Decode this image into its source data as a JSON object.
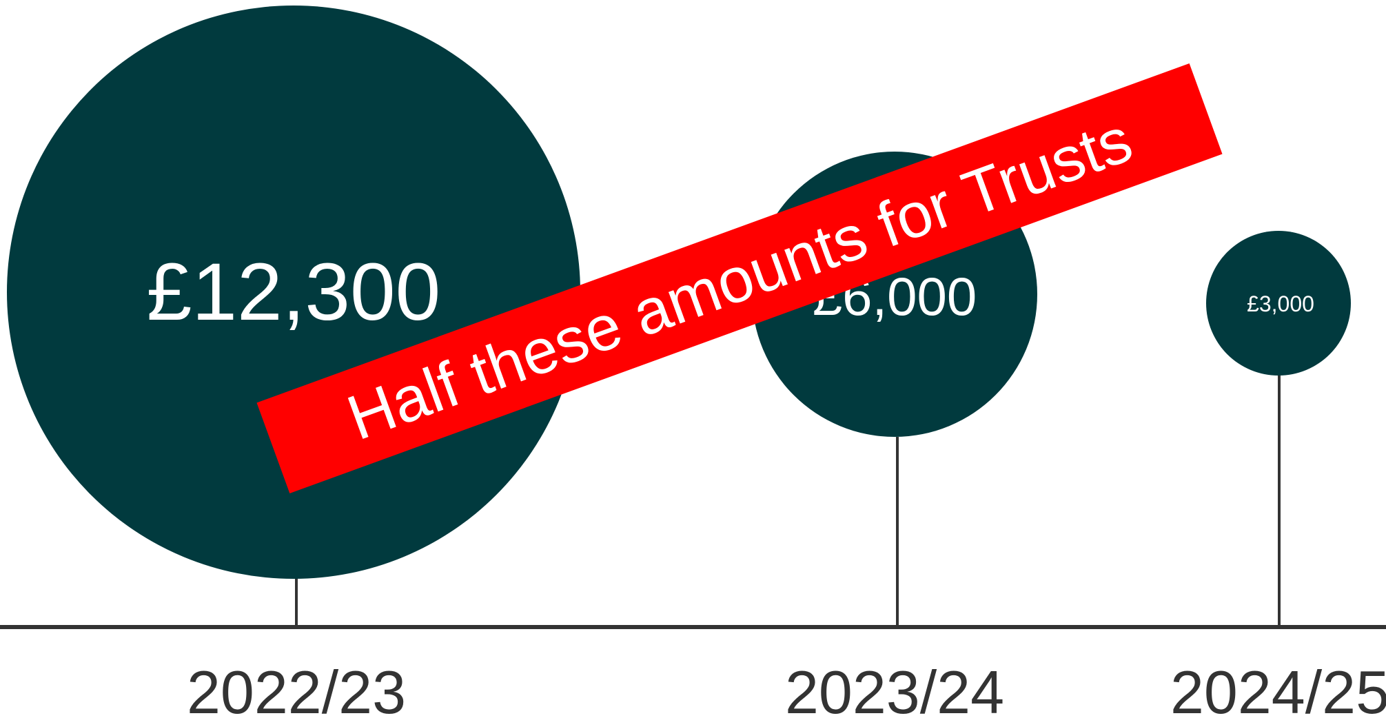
{
  "chart_data": {
    "type": "bubble",
    "categories": [
      "2022/23",
      "2023/24",
      "2024/25"
    ],
    "values": [
      12300,
      6000,
      3000
    ],
    "value_labels": [
      "£12,300",
      "£6,000",
      "£3,000"
    ],
    "title": "",
    "xlabel": "",
    "ylabel": "",
    "annotation": "Half these amounts for Trusts",
    "colors": {
      "bubble": "#013a3e",
      "axis": "#333333",
      "banner": "#ff0000",
      "bubble_text": "#ffffff",
      "axis_text": "#333333"
    }
  }
}
